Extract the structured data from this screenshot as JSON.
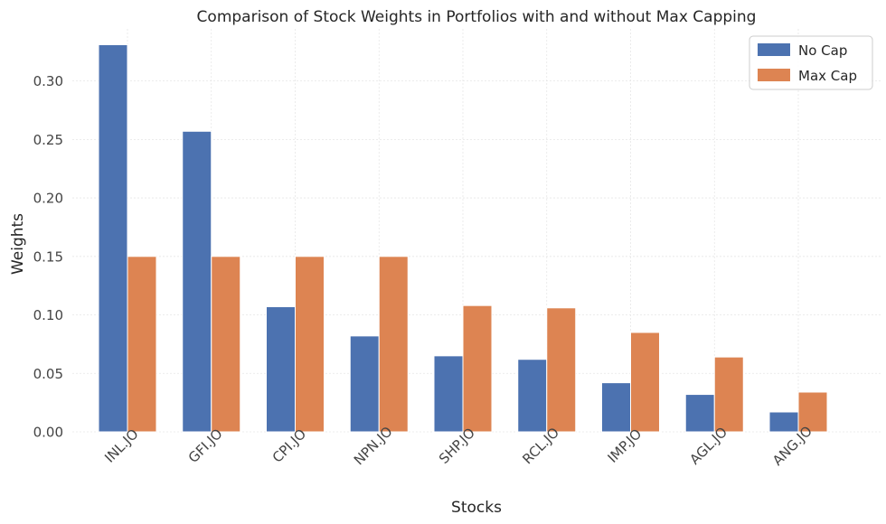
{
  "chart_data": {
    "type": "bar",
    "title": "Comparison of Stock Weights in Portfolios with and without Max Capping",
    "xlabel": "Stocks",
    "ylabel": "Weights",
    "ylim": [
      0,
      0.3445
    ],
    "yticks": [
      0.0,
      0.05,
      0.1,
      0.15,
      0.2,
      0.25,
      0.3
    ],
    "ytick_labels": [
      "0.00",
      "0.05",
      "0.10",
      "0.15",
      "0.20",
      "0.25",
      "0.30"
    ],
    "grid": true,
    "legend_position": "top-right",
    "categories": [
      "INL.JO",
      "GFI.JO",
      "CPI.JO",
      "NPN.JO",
      "SHP.JO",
      "RCL.JO",
      "IMP.JO",
      "AGL.JO",
      "ANG.JO"
    ],
    "series": [
      {
        "name": "No Cap",
        "color": "#4c72b0",
        "values": [
          0.331,
          0.257,
          0.107,
          0.082,
          0.065,
          0.062,
          0.042,
          0.032,
          0.017
        ]
      },
      {
        "name": "Max Cap",
        "color": "#dd8452",
        "values": [
          0.15,
          0.15,
          0.15,
          0.15,
          0.108,
          0.106,
          0.085,
          0.064,
          0.034
        ]
      }
    ]
  }
}
